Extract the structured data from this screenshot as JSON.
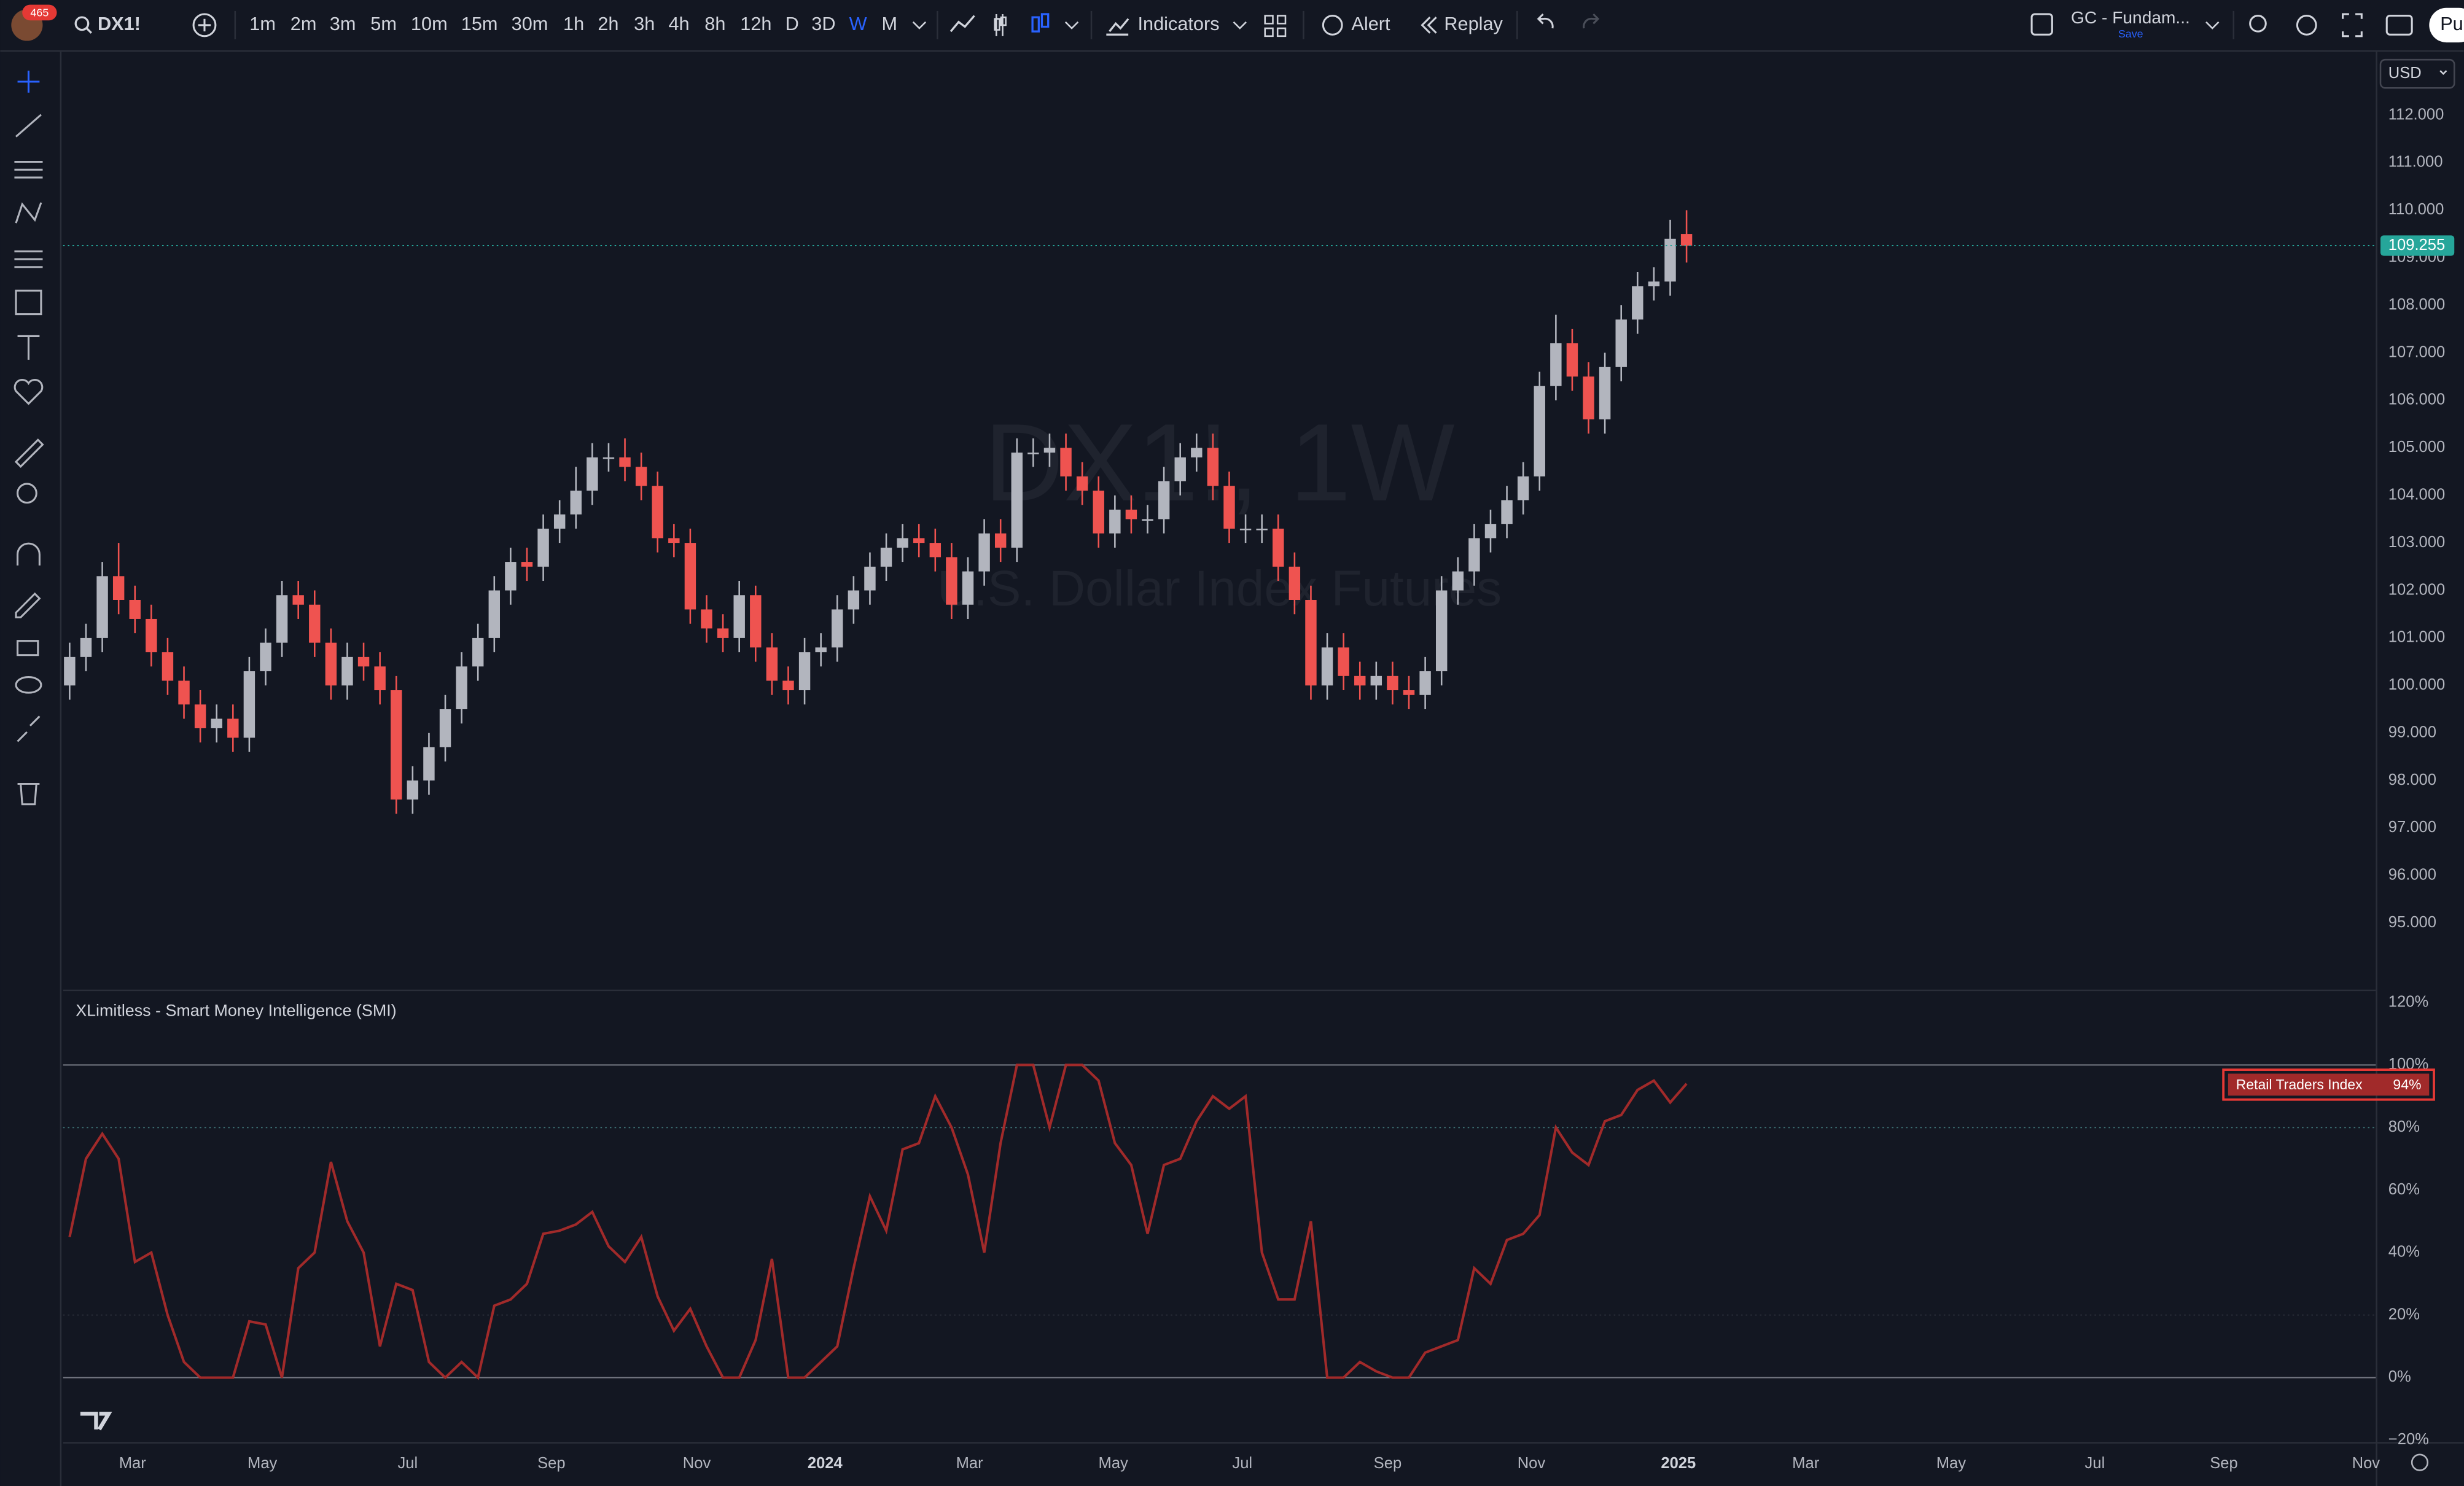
{
  "ui": {
    "avatar_badge": "465",
    "symbol": "DX1!",
    "intervals": [
      "1m",
      "2m",
      "3m",
      "5m",
      "10m",
      "15m",
      "30m",
      "1h",
      "2h",
      "3h",
      "4h",
      "8h",
      "12h",
      "D",
      "3D",
      "W",
      "M"
    ],
    "active_interval": "W",
    "indicators": "Indicators",
    "alert": "Alert",
    "replay": "Replay",
    "layout_name": "GC - Fundam...",
    "save": "Save",
    "publish": "Pu",
    "currency": "USD"
  },
  "chart_data": [
    {
      "type": "candlestick",
      "title": "DX1!, 1W",
      "subtitle": "U.S. Dollar Index Futures",
      "up_color": "#b2b5be",
      "down_color": "#ef5350",
      "last_line_color": "#26a69a",
      "grid": false,
      "xlim": [
        -0.4,
        141.2
      ],
      "ylim": [
        93.6,
        113.3
      ],
      "yticks": [
        {
          "value": 95,
          "label": "95.000"
        },
        {
          "value": 96,
          "label": "96.000"
        },
        {
          "value": 97,
          "label": "97.000"
        },
        {
          "value": 98,
          "label": "98.000"
        },
        {
          "value": 99,
          "label": "99.000"
        },
        {
          "value": 100,
          "label": "100.000"
        },
        {
          "value": 101,
          "label": "101.000"
        },
        {
          "value": 102,
          "label": "102.000"
        },
        {
          "value": 103,
          "label": "103.000"
        },
        {
          "value": 104,
          "label": "104.000"
        },
        {
          "value": 105,
          "label": "105.000"
        },
        {
          "value": 106,
          "label": "106.000"
        },
        {
          "value": 107,
          "label": "107.000"
        },
        {
          "value": 108,
          "label": "108.000"
        },
        {
          "value": 109,
          "label": "109.000"
        },
        {
          "value": 110,
          "label": "110.000"
        },
        {
          "value": 111,
          "label": "111.000"
        },
        {
          "value": 112,
          "label": "112.000"
        }
      ],
      "open": [
        100.0,
        100.6,
        101.0,
        102.3,
        101.8,
        101.4,
        100.7,
        100.1,
        99.6,
        99.1,
        99.3,
        98.9,
        100.3,
        100.9,
        101.9,
        101.7,
        100.9,
        100.0,
        100.6,
        100.4,
        99.9,
        97.6,
        98.0,
        98.7,
        99.5,
        100.4,
        101.0,
        102.0,
        102.6,
        102.5,
        103.3,
        103.6,
        104.1,
        104.8,
        104.8,
        104.6,
        104.2,
        103.1,
        103.0,
        101.6,
        101.2,
        101.0,
        101.9,
        100.8,
        100.1,
        99.9,
        100.7,
        100.8,
        101.6,
        102.0,
        102.5,
        102.9,
        103.1,
        103.0,
        102.7,
        101.7,
        102.4,
        103.2,
        102.9,
        104.9,
        104.9,
        105.0,
        104.4,
        104.1,
        103.2,
        103.7,
        103.5,
        103.5,
        104.3,
        104.8,
        105.0,
        104.2,
        103.3,
        103.3,
        103.3,
        102.5,
        101.8,
        100.0,
        100.8,
        100.2,
        100.0,
        100.2,
        99.9,
        99.8,
        100.3,
        102.0,
        102.4,
        103.1,
        103.4,
        103.9,
        104.4,
        106.3,
        107.2,
        106.5,
        105.6,
        106.7,
        107.7,
        108.4,
        108.5,
        109.5
      ],
      "high": [
        100.9,
        101.3,
        102.6,
        103.0,
        102.1,
        101.7,
        101.0,
        100.4,
        99.9,
        99.6,
        99.6,
        100.6,
        101.2,
        102.2,
        102.2,
        102.0,
        101.2,
        100.9,
        100.9,
        100.7,
        100.2,
        98.3,
        99.0,
        99.8,
        100.7,
        101.3,
        102.3,
        102.9,
        102.9,
        103.6,
        103.9,
        104.6,
        105.1,
        105.1,
        105.2,
        104.9,
        104.5,
        103.4,
        103.3,
        101.9,
        101.5,
        102.2,
        102.1,
        101.1,
        100.4,
        101.0,
        101.1,
        101.9,
        102.3,
        102.8,
        103.2,
        103.4,
        103.4,
        103.3,
        103.0,
        102.7,
        103.5,
        103.5,
        105.2,
        105.2,
        105.3,
        105.3,
        104.7,
        104.4,
        104.0,
        104.0,
        103.8,
        104.6,
        105.1,
        105.3,
        105.3,
        104.5,
        103.6,
        103.6,
        103.6,
        102.8,
        102.1,
        101.1,
        101.1,
        100.5,
        100.5,
        100.5,
        100.2,
        100.6,
        102.3,
        102.7,
        103.4,
        103.7,
        104.2,
        104.7,
        106.6,
        107.8,
        107.5,
        106.8,
        107.0,
        108.0,
        108.7,
        108.8,
        109.8,
        110.0
      ],
      "low": [
        99.7,
        100.3,
        100.7,
        101.5,
        101.1,
        100.4,
        99.8,
        99.3,
        98.8,
        98.8,
        98.6,
        98.6,
        100.0,
        100.6,
        101.4,
        100.6,
        99.7,
        99.7,
        100.1,
        99.6,
        97.3,
        97.3,
        97.7,
        98.4,
        99.2,
        100.1,
        100.7,
        101.7,
        102.2,
        102.2,
        103.0,
        103.3,
        103.8,
        104.5,
        104.3,
        103.9,
        102.8,
        102.7,
        101.3,
        100.9,
        100.7,
        100.7,
        100.5,
        99.8,
        99.6,
        99.6,
        100.4,
        100.5,
        101.3,
        101.7,
        102.2,
        102.6,
        102.7,
        102.4,
        101.4,
        101.4,
        102.1,
        102.6,
        102.6,
        104.6,
        104.6,
        104.1,
        103.8,
        102.9,
        102.9,
        103.2,
        103.2,
        103.2,
        104.0,
        104.5,
        103.9,
        103.0,
        103.0,
        103.0,
        102.2,
        101.5,
        99.7,
        99.7,
        99.9,
        99.7,
        99.7,
        99.6,
        99.5,
        99.5,
        100.0,
        101.7,
        102.1,
        102.8,
        103.1,
        103.6,
        104.1,
        106.0,
        106.2,
        105.3,
        105.3,
        106.4,
        107.4,
        108.1,
        108.2,
        108.9
      ],
      "close": [
        100.6,
        101.0,
        102.3,
        101.8,
        101.4,
        100.7,
        100.1,
        99.6,
        99.1,
        99.3,
        98.9,
        100.3,
        100.9,
        101.9,
        101.7,
        100.9,
        100.0,
        100.6,
        100.4,
        99.9,
        97.6,
        98.0,
        98.7,
        99.5,
        100.4,
        101.0,
        102.0,
        102.6,
        102.5,
        103.3,
        103.6,
        104.1,
        104.8,
        104.8,
        104.6,
        104.2,
        103.1,
        103.0,
        101.6,
        101.2,
        101.0,
        101.9,
        100.8,
        100.1,
        99.9,
        100.7,
        100.8,
        101.6,
        102.0,
        102.5,
        102.9,
        103.1,
        103.0,
        102.7,
        101.7,
        102.4,
        103.2,
        102.9,
        104.9,
        104.9,
        105.0,
        104.4,
        104.1,
        103.2,
        103.7,
        103.5,
        103.5,
        104.3,
        104.8,
        105.0,
        104.2,
        103.3,
        103.3,
        103.3,
        102.5,
        101.8,
        100.0,
        100.8,
        100.2,
        100.0,
        100.2,
        99.9,
        99.8,
        100.3,
        102.0,
        102.4,
        103.1,
        103.4,
        103.9,
        104.4,
        106.3,
        107.2,
        106.5,
        105.6,
        106.7,
        107.7,
        108.4,
        108.5,
        109.4,
        109.255
      ]
    },
    {
      "type": "line",
      "title": "XLimitless - Smart Money Intelligence (SMI)",
      "grid": false,
      "xlim": [
        -0.4,
        141.2
      ],
      "ylim": [
        -20.6,
        123.6
      ],
      "xticks": [
        {
          "value": 3.85,
          "label": "Mar"
        },
        {
          "value": 11.8,
          "label": "May"
        },
        {
          "value": 20.7,
          "label": "Jul"
        },
        {
          "value": 29.5,
          "label": "Sep"
        },
        {
          "value": 38.4,
          "label": "Nov"
        },
        {
          "value": 46.25,
          "label": "2024",
          "bold": true
        },
        {
          "value": 55.1,
          "label": "Mar"
        },
        {
          "value": 63.9,
          "label": "May"
        },
        {
          "value": 71.8,
          "label": "Jul"
        },
        {
          "value": 80.7,
          "label": "Sep"
        },
        {
          "value": 89.5,
          "label": "Nov"
        },
        {
          "value": 98.5,
          "label": "2025",
          "bold": true
        },
        {
          "value": 106.3,
          "label": "Mar"
        },
        {
          "value": 115.2,
          "label": "May"
        },
        {
          "value": 124,
          "label": "Jul"
        },
        {
          "value": 131.9,
          "label": "Sep"
        },
        {
          "value": 140.6,
          "label": "Nov"
        }
      ],
      "yticks": [
        {
          "value": -20,
          "label": "−20%"
        },
        {
          "value": 0,
          "label": "0%"
        },
        {
          "value": 20,
          "label": "20%"
        },
        {
          "value": 40,
          "label": "40%"
        },
        {
          "value": 60,
          "label": "60%"
        },
        {
          "value": 80,
          "label": "80%"
        },
        {
          "value": 100,
          "label": "100%"
        },
        {
          "value": 120,
          "label": "120%"
        }
      ],
      "levels": [
        {
          "value": 100,
          "style": "solid"
        },
        {
          "value": 80,
          "style": "dotted"
        },
        {
          "value": 20,
          "style": "faint"
        },
        {
          "value": 0,
          "style": "solid"
        }
      ],
      "series": [
        {
          "name": "Retail Traders Index",
          "color": "#a12a2a",
          "values": [
            45,
            70,
            78,
            70,
            37,
            40,
            20,
            5,
            0,
            0,
            0,
            18,
            17,
            0,
            35,
            40,
            69,
            50,
            40,
            10,
            30,
            28,
            5,
            0,
            5,
            0,
            23,
            25,
            30,
            46,
            47,
            49,
            53,
            42,
            37,
            45,
            26,
            15,
            22,
            10,
            0,
            0,
            12,
            38,
            0,
            0,
            5,
            10,
            35,
            58,
            47,
            73,
            75,
            90,
            80,
            65,
            40,
            75,
            100,
            100,
            80,
            100,
            100,
            95,
            75,
            68,
            46,
            68,
            70,
            82,
            90,
            86,
            90,
            40,
            25,
            25,
            50,
            0,
            0,
            5,
            2,
            0,
            0,
            8,
            10,
            12,
            35,
            30,
            44,
            46,
            52,
            80,
            72,
            68,
            82,
            84,
            92,
            95,
            88,
            94
          ],
          "last_value_label": "94%"
        }
      ]
    }
  ]
}
